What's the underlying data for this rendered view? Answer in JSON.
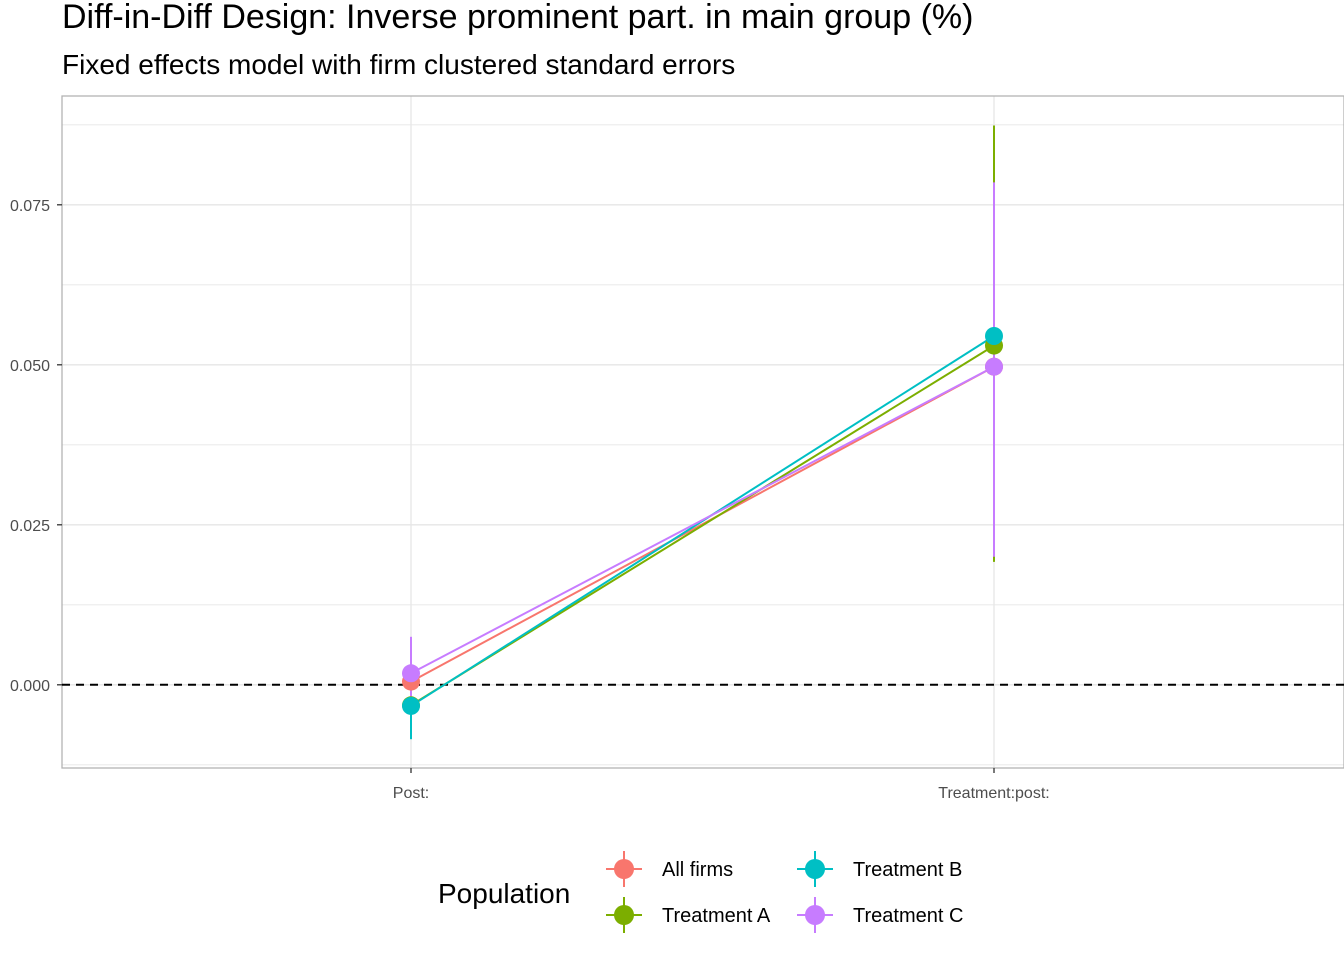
{
  "chart_data": {
    "type": "scatter",
    "title": "Diff-in-Diff Design: Inverse prominent part. in main group (%)",
    "subtitle": "Fixed effects model with firm clustered standard errors",
    "xlabel": "",
    "ylabel": "",
    "categories": [
      "Post:",
      "Treatment:post:"
    ],
    "ylim": [
      -0.013,
      0.092
    ],
    "y_ticks": [
      0.0,
      0.025,
      0.05,
      0.075
    ],
    "y_tick_labels": [
      "0.000",
      "0.025",
      "0.050",
      "0.075"
    ],
    "reference_line": {
      "y": 0.0,
      "style": "dashed",
      "color": "#000000"
    },
    "grid": true,
    "connected": true,
    "legend": {
      "title": "Population",
      "position": "bottom"
    },
    "series": [
      {
        "name": "All firms",
        "color": "#F8766D",
        "values": [
          0.0005,
          0.0497
        ],
        "lower": [
          -0.0035,
          0.02
        ],
        "upper": [
          0.0045,
          0.0794
        ]
      },
      {
        "name": "Treatment A",
        "color": "#7CAE00",
        "values": [
          -0.0032,
          0.053
        ],
        "lower": [
          -0.0082,
          0.0192
        ],
        "upper": [
          0.0018,
          0.0874
        ]
      },
      {
        "name": "Treatment B",
        "color": "#00BFC4",
        "values": [
          -0.0033,
          0.0545
        ],
        "lower": [
          -0.0085,
          0.0315
        ],
        "upper": [
          0.002,
          0.078
        ]
      },
      {
        "name": "Treatment C",
        "color": "#C77CFF",
        "values": [
          0.0018,
          0.0497
        ],
        "lower": [
          -0.0038,
          0.02
        ],
        "upper": [
          0.0075,
          0.0785
        ]
      }
    ]
  }
}
